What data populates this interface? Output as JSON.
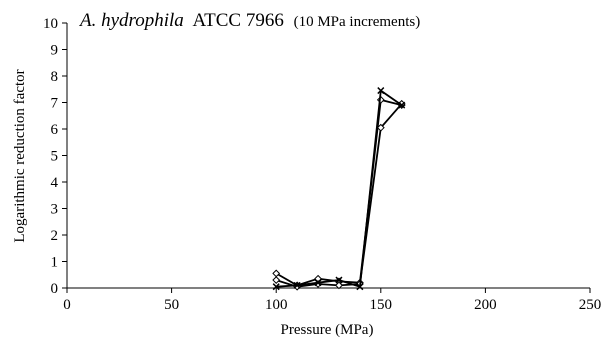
{
  "chart_data": {
    "type": "line",
    "title_italic": "A. hydrophila",
    "title_main": "ATCC 7966",
    "title_note": "(10 MPa increments)",
    "xlabel": "Pressure (MPa)",
    "ylabel": "Logarithmic reduction factor",
    "xlim": [
      0,
      250
    ],
    "ylim": [
      0,
      10
    ],
    "x_ticks": [
      "0",
      "50",
      "100",
      "150",
      "200",
      "250"
    ],
    "y_ticks": [
      "0",
      "1",
      "2",
      "3",
      "4",
      "5",
      "6",
      "7",
      "8",
      "9",
      "10"
    ],
    "grid": false,
    "legend": "none",
    "series": [
      {
        "marker": "diamond",
        "x": [
          100,
          110,
          120,
          130,
          140,
          150,
          160
        ],
        "y": [
          0.55,
          0.1,
          0.35,
          0.25,
          0.2,
          7.1,
          6.9
        ]
      },
      {
        "marker": "diamond",
        "x": [
          100,
          110,
          120,
          130,
          140,
          150,
          160
        ],
        "y": [
          0.3,
          0.05,
          0.15,
          0.1,
          0.15,
          6.05,
          6.95
        ]
      },
      {
        "marker": "x",
        "x": [
          100,
          110,
          120,
          130,
          140,
          150,
          160
        ],
        "y": [
          0.05,
          0.1,
          0.2,
          0.3,
          0.05,
          7.45,
          6.9
        ]
      }
    ]
  }
}
